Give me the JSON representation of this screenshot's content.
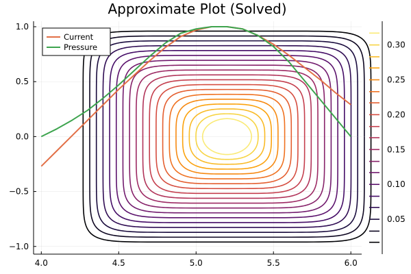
{
  "chart_data": {
    "type": "line",
    "title": "Approximate Plot (Solved)",
    "xlabel": "",
    "ylabel": "",
    "xlim": [
      3.95,
      6.07
    ],
    "ylim": [
      -1.07,
      1.05
    ],
    "xticks": [
      4.0,
      4.5,
      5.0,
      5.5,
      6.0
    ],
    "xtick_labels": [
      "4.0",
      "4.5",
      "5.0",
      "5.5",
      "6.0"
    ],
    "yticks": [
      -1.0,
      -0.5,
      0.0,
      0.5,
      1.0
    ],
    "ytick_labels": [
      "−1.0",
      "−0.5",
      "0.0",
      "0.5",
      "1.0"
    ],
    "grid": true,
    "legend_position": "top-left",
    "series": [
      {
        "name": "Current",
        "color": "#e26f46",
        "x": [
          4.0,
          4.1,
          4.2,
          4.3,
          4.4,
          4.5,
          4.6,
          4.7,
          4.8,
          4.9,
          5.0,
          5.1,
          5.2,
          5.3,
          5.4,
          5.5,
          5.6,
          5.7,
          5.8,
          5.9,
          6.0
        ],
        "y": [
          -0.27,
          -0.13,
          0.01,
          0.15,
          0.29,
          0.43,
          0.56,
          0.69,
          0.81,
          0.91,
          0.97,
          1.0,
          1.0,
          0.98,
          0.92,
          0.84,
          0.74,
          0.63,
          0.52,
          0.4,
          0.29
        ]
      },
      {
        "name": "Pressure",
        "color": "#3da44e",
        "x": [
          4.0,
          4.1,
          4.2,
          4.3,
          4.4,
          4.5,
          4.6,
          4.7,
          4.8,
          4.9,
          5.0,
          5.1,
          5.2,
          5.3,
          5.4,
          5.5,
          5.6,
          5.7,
          5.8,
          5.9,
          6.0
        ],
        "y": [
          0.0,
          0.07,
          0.15,
          0.24,
          0.35,
          0.47,
          0.6,
          0.73,
          0.85,
          0.94,
          0.98,
          1.0,
          1.0,
          0.98,
          0.92,
          0.82,
          0.68,
          0.51,
          0.34,
          0.17,
          0.0
        ]
      }
    ],
    "contour": {
      "center": [
        5.2,
        0.0
      ],
      "x_half_width": 0.93,
      "y_half_height": 0.96,
      "levels": [
        0.017,
        0.033,
        0.05,
        0.067,
        0.083,
        0.1,
        0.117,
        0.133,
        0.15,
        0.167,
        0.183,
        0.2,
        0.217,
        0.233,
        0.25,
        0.267,
        0.283,
        0.3,
        0.317
      ],
      "colorbar_ticks": [
        0.05,
        0.1,
        0.15,
        0.2,
        0.25,
        0.3
      ],
      "colorbar_tick_labels": [
        "0.05",
        "0.10",
        "0.15",
        "0.20",
        "0.25",
        "0.30"
      ],
      "colormap": [
        "#000004",
        "#1b0c41",
        "#4a0c6b",
        "#781c6d",
        "#a52c60",
        "#cf4446",
        "#ed6925",
        "#fb9b06",
        "#f7d13d",
        "#fcffa4"
      ]
    }
  }
}
